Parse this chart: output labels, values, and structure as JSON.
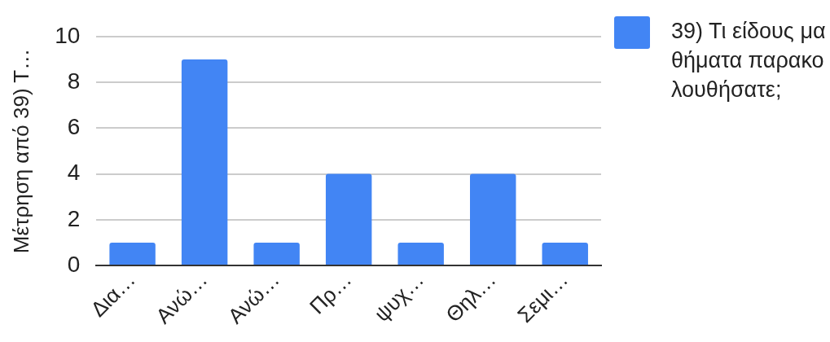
{
  "chart_data": {
    "type": "bar",
    "ylabel": "Μέτρηση από 39) Τ…",
    "categories": [
      "Δια…",
      "Ανώ…",
      "Ανώ…",
      "Πρ…",
      "ψυχ…",
      "Θηλ…",
      "Σεμι…"
    ],
    "series": [
      {
        "name": "39) Τι είδους μαθήματα παρακολουθήσατε;",
        "color": "#4285f4",
        "values": [
          1,
          9,
          1,
          4,
          1,
          4,
          1
        ]
      }
    ],
    "ylim": [
      0,
      10
    ],
    "yticks": [
      0,
      2,
      4,
      6,
      8,
      10
    ],
    "grid": "y",
    "legend": "top right"
  }
}
